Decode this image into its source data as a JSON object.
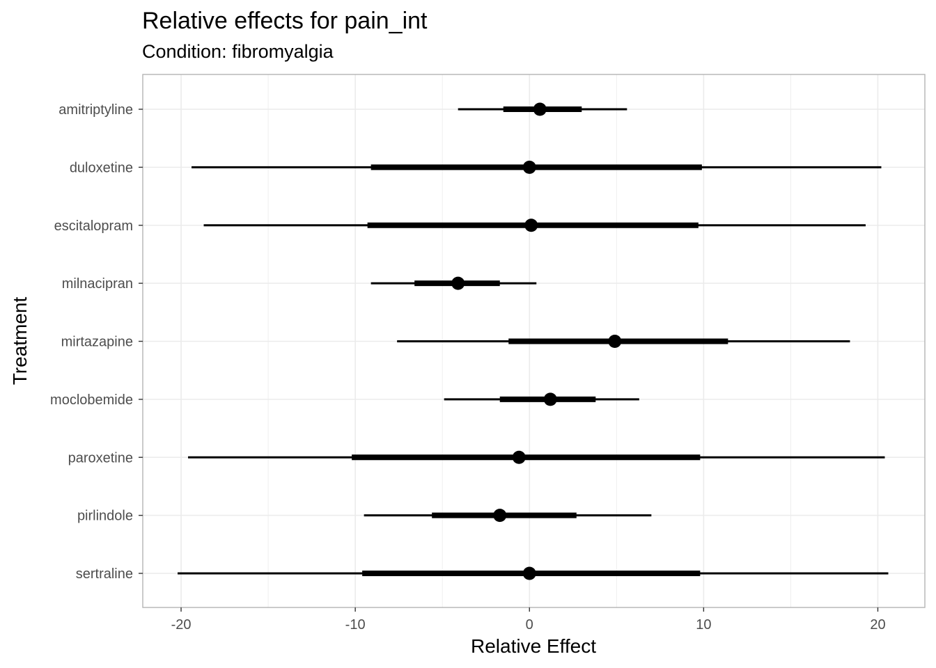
{
  "chart_data": {
    "type": "forest",
    "title": "Relative effects for pain_int",
    "subtitle": "Condition: fibromyalgia",
    "xlabel": "Relative Effect",
    "ylabel": "Treatment",
    "xlim": [
      -22.2,
      22.7
    ],
    "xticks": [
      -20,
      -10,
      0,
      10,
      20
    ],
    "xtick_labels": [
      "-20",
      "-10",
      "0",
      "10",
      "20"
    ],
    "grid": true,
    "panel_border": true,
    "colors": {
      "marks": "#000000",
      "grid": "#ebebeb",
      "border": "#b3b3b3",
      "tick_label": "#4d4d4d"
    },
    "rows": [
      {
        "treatment": "amitriptyline",
        "estimate": 0.6,
        "inner": [
          -1.5,
          3.0
        ],
        "outer": [
          -4.1,
          5.6
        ]
      },
      {
        "treatment": "duloxetine",
        "estimate": 0.0,
        "inner": [
          -9.1,
          9.9
        ],
        "outer": [
          -19.4,
          20.2
        ]
      },
      {
        "treatment": "escitalopram",
        "estimate": 0.1,
        "inner": [
          -9.3,
          9.7
        ],
        "outer": [
          -18.7,
          19.3
        ]
      },
      {
        "treatment": "milnacipran",
        "estimate": -4.1,
        "inner": [
          -6.6,
          -1.7
        ],
        "outer": [
          -9.1,
          0.4
        ]
      },
      {
        "treatment": "mirtazapine",
        "estimate": 4.9,
        "inner": [
          -1.2,
          11.4
        ],
        "outer": [
          -7.6,
          18.4
        ]
      },
      {
        "treatment": "moclobemide",
        "estimate": 1.2,
        "inner": [
          -1.7,
          3.8
        ],
        "outer": [
          -4.9,
          6.3
        ]
      },
      {
        "treatment": "paroxetine",
        "estimate": -0.6,
        "inner": [
          -10.2,
          9.8
        ],
        "outer": [
          -19.6,
          20.4
        ]
      },
      {
        "treatment": "pirlindole",
        "estimate": -1.7,
        "inner": [
          -5.6,
          2.7
        ],
        "outer": [
          -9.5,
          7.0
        ]
      },
      {
        "treatment": "sertraline",
        "estimate": 0.0,
        "inner": [
          -9.6,
          9.8
        ],
        "outer": [
          -20.2,
          20.6
        ]
      }
    ]
  }
}
